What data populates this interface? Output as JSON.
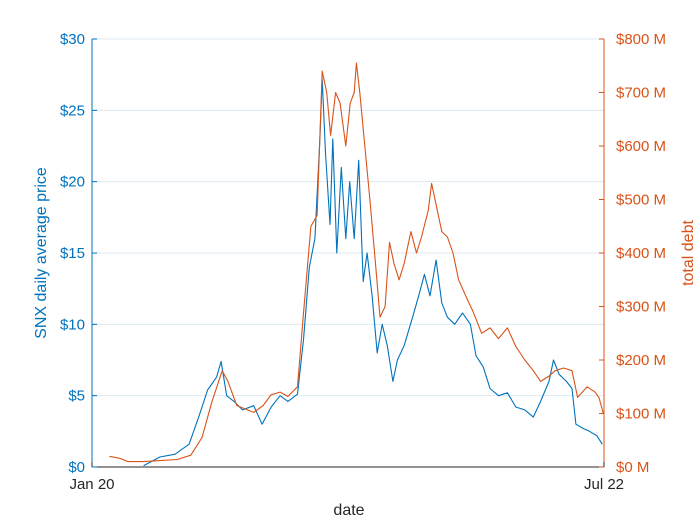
{
  "chart_data": {
    "type": "line",
    "xlabel": "date",
    "x_range": [
      "2020-01-01",
      "2022-07-01"
    ],
    "x_ticks": [
      {
        "date": "2020-01-01",
        "label": "Jan 20"
      },
      {
        "date": "2022-07-01",
        "label": "Jul 22"
      }
    ],
    "grid": "horizontal major gridlines (light blue)",
    "legend": "none",
    "left_axis": {
      "label": "SNX daily average price",
      "range": [
        0,
        30
      ],
      "ticks": [
        0,
        5,
        10,
        15,
        20,
        25,
        30
      ],
      "tick_labels": [
        "$0",
        "$5",
        "$10",
        "$15",
        "$20",
        "$25",
        "$30"
      ]
    },
    "right_axis": {
      "label": "total debt",
      "range": [
        0,
        800
      ],
      "unit": "millions USD",
      "ticks": [
        0,
        100,
        200,
        300,
        400,
        500,
        600,
        700,
        800
      ],
      "tick_labels": [
        "$0 M",
        "$100 M",
        "$200 M",
        "$300 M",
        "$400 M",
        "$500 M",
        "$600 M",
        "$700 M",
        "$800 M"
      ]
    },
    "series": [
      {
        "axis": "left",
        "color": "#0072BD",
        "points": [
          [
            "2020-04-02",
            0.1
          ],
          [
            "2020-05-01",
            0.7
          ],
          [
            "2020-05-28",
            0.9
          ],
          [
            "2020-06-22",
            1.6
          ],
          [
            "2020-07-10",
            3.6
          ],
          [
            "2020-07-25",
            5.4
          ],
          [
            "2020-08-10",
            6.3
          ],
          [
            "2020-08-18",
            7.4
          ],
          [
            "2020-08-28",
            5.0
          ],
          [
            "2020-09-10",
            4.6
          ],
          [
            "2020-09-25",
            4.0
          ],
          [
            "2020-10-15",
            4.3
          ],
          [
            "2020-10-30",
            3.0
          ],
          [
            "2020-11-15",
            4.2
          ],
          [
            "2020-12-01",
            5.0
          ],
          [
            "2020-12-15",
            4.6
          ],
          [
            "2021-01-01",
            5.1
          ],
          [
            "2021-01-12",
            9.0
          ],
          [
            "2021-01-22",
            14.0
          ],
          [
            "2021-02-01",
            16.0
          ],
          [
            "2021-02-10",
            23.0
          ],
          [
            "2021-02-14",
            27.2
          ],
          [
            "2021-02-20",
            22.0
          ],
          [
            "2021-02-28",
            17.0
          ],
          [
            "2021-03-05",
            23.0
          ],
          [
            "2021-03-12",
            15.0
          ],
          [
            "2021-03-20",
            21.0
          ],
          [
            "2021-03-28",
            16.0
          ],
          [
            "2021-04-04",
            20.0
          ],
          [
            "2021-04-12",
            16.0
          ],
          [
            "2021-04-20",
            21.5
          ],
          [
            "2021-04-28",
            13.0
          ],
          [
            "2021-05-05",
            15.0
          ],
          [
            "2021-05-14",
            12.0
          ],
          [
            "2021-05-23",
            8.0
          ],
          [
            "2021-06-01",
            10.0
          ],
          [
            "2021-06-10",
            8.5
          ],
          [
            "2021-06-20",
            6.0
          ],
          [
            "2021-06-28",
            7.5
          ],
          [
            "2021-07-10",
            8.5
          ],
          [
            "2021-07-25",
            10.5
          ],
          [
            "2021-08-05",
            12.0
          ],
          [
            "2021-08-15",
            13.5
          ],
          [
            "2021-08-25",
            12.0
          ],
          [
            "2021-09-05",
            14.5
          ],
          [
            "2021-09-15",
            11.5
          ],
          [
            "2021-09-25",
            10.5
          ],
          [
            "2021-10-08",
            10.0
          ],
          [
            "2021-10-22",
            10.8
          ],
          [
            "2021-11-05",
            10.0
          ],
          [
            "2021-11-15",
            7.8
          ],
          [
            "2021-11-28",
            7.0
          ],
          [
            "2021-12-10",
            5.5
          ],
          [
            "2021-12-25",
            5.0
          ],
          [
            "2022-01-10",
            5.2
          ],
          [
            "2022-01-25",
            4.2
          ],
          [
            "2022-02-10",
            4.0
          ],
          [
            "2022-02-25",
            3.5
          ],
          [
            "2022-03-10",
            4.6
          ],
          [
            "2022-03-25",
            6.0
          ],
          [
            "2022-04-02",
            7.5
          ],
          [
            "2022-04-12",
            6.5
          ],
          [
            "2022-04-25",
            6.0
          ],
          [
            "2022-05-05",
            5.5
          ],
          [
            "2022-05-12",
            3.0
          ],
          [
            "2022-05-25",
            2.7
          ],
          [
            "2022-06-05",
            2.5
          ],
          [
            "2022-06-18",
            2.2
          ],
          [
            "2022-06-28",
            1.6
          ]
        ]
      },
      {
        "axis": "right",
        "color": "#D95319",
        "points": [
          [
            "2020-02-01",
            20
          ],
          [
            "2020-02-20",
            16
          ],
          [
            "2020-03-05",
            10
          ],
          [
            "2020-04-01",
            10
          ],
          [
            "2020-05-01",
            12
          ],
          [
            "2020-06-01",
            14
          ],
          [
            "2020-06-25",
            22
          ],
          [
            "2020-07-15",
            55
          ],
          [
            "2020-08-01",
            120
          ],
          [
            "2020-08-20",
            180
          ],
          [
            "2020-08-30",
            160
          ],
          [
            "2020-09-15",
            115
          ],
          [
            "2020-10-01",
            108
          ],
          [
            "2020-10-15",
            102
          ],
          [
            "2020-11-01",
            115
          ],
          [
            "2020-11-15",
            135
          ],
          [
            "2020-12-01",
            140
          ],
          [
            "2020-12-15",
            132
          ],
          [
            "2021-01-01",
            150
          ],
          [
            "2021-01-12",
            290
          ],
          [
            "2021-01-25",
            450
          ],
          [
            "2021-02-05",
            470
          ],
          [
            "2021-02-14",
            740
          ],
          [
            "2021-02-22",
            700
          ],
          [
            "2021-03-01",
            620
          ],
          [
            "2021-03-10",
            700
          ],
          [
            "2021-03-18",
            680
          ],
          [
            "2021-03-28",
            600
          ],
          [
            "2021-04-05",
            680
          ],
          [
            "2021-04-12",
            700
          ],
          [
            "2021-04-16",
            755
          ],
          [
            "2021-04-22",
            700
          ],
          [
            "2021-05-01",
            600
          ],
          [
            "2021-05-10",
            500
          ],
          [
            "2021-05-20",
            380
          ],
          [
            "2021-05-28",
            280
          ],
          [
            "2021-06-06",
            300
          ],
          [
            "2021-06-14",
            420
          ],
          [
            "2021-06-22",
            380
          ],
          [
            "2021-07-01",
            350
          ],
          [
            "2021-07-10",
            380
          ],
          [
            "2021-07-22",
            440
          ],
          [
            "2021-08-01",
            400
          ],
          [
            "2021-08-10",
            430
          ],
          [
            "2021-08-22",
            480
          ],
          [
            "2021-08-28",
            530
          ],
          [
            "2021-09-05",
            490
          ],
          [
            "2021-09-15",
            440
          ],
          [
            "2021-09-25",
            430
          ],
          [
            "2021-10-05",
            400
          ],
          [
            "2021-10-15",
            350
          ],
          [
            "2021-11-01",
            310
          ],
          [
            "2021-11-10",
            290
          ],
          [
            "2021-11-25",
            250
          ],
          [
            "2021-12-10",
            260
          ],
          [
            "2021-12-25",
            240
          ],
          [
            "2022-01-10",
            260
          ],
          [
            "2022-01-25",
            225
          ],
          [
            "2022-02-10",
            200
          ],
          [
            "2022-02-25",
            180
          ],
          [
            "2022-03-10",
            160
          ],
          [
            "2022-03-25",
            170
          ],
          [
            "2022-04-05",
            180
          ],
          [
            "2022-04-20",
            185
          ],
          [
            "2022-05-05",
            180
          ],
          [
            "2022-05-15",
            130
          ],
          [
            "2022-06-01",
            150
          ],
          [
            "2022-06-15",
            140
          ],
          [
            "2022-06-22",
            130
          ],
          [
            "2022-06-30",
            100
          ]
        ]
      }
    ]
  }
}
